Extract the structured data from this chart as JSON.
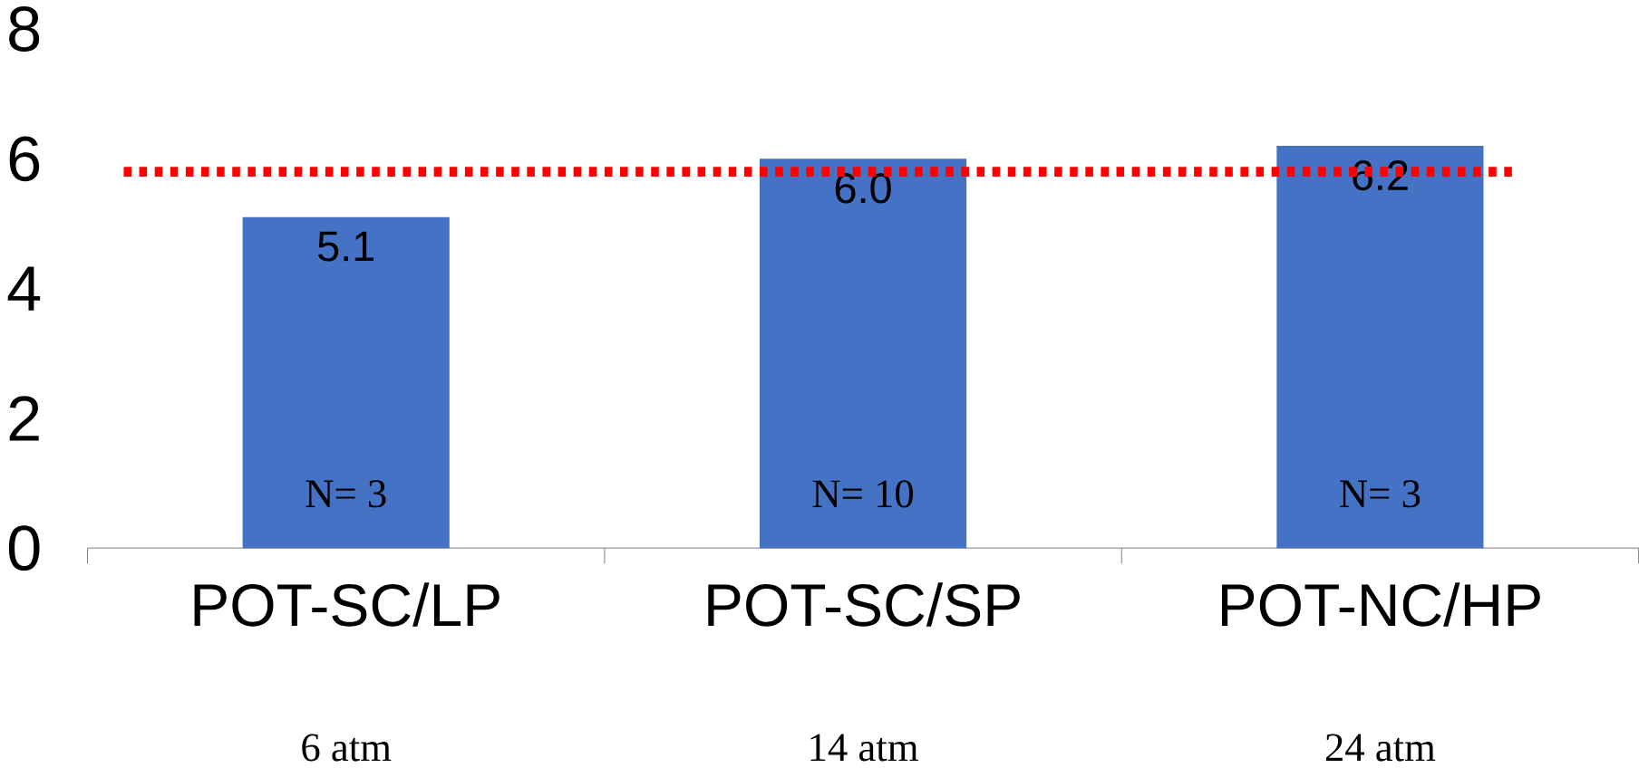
{
  "chart_data": {
    "type": "bar",
    "categories": [
      "POT-SC/LP",
      "POT-SC/SP",
      "POT-NC/HP"
    ],
    "values": [
      5.1,
      6.0,
      6.2
    ],
    "color": "#4472c4",
    "value_labels": [
      "5.1",
      "6.0",
      "6.2"
    ],
    "ylim": [
      0,
      8
    ],
    "yticks": [
      0,
      2,
      4,
      6,
      8
    ],
    "ref_lines": [
      {
        "axis": "y",
        "value": 5.8,
        "color": "#ff0000",
        "line_style": "dotted"
      }
    ],
    "annotations": [
      "N= 3",
      "N= 10",
      "N= 3",
      "6 atm",
      "14 atm",
      "24 atm"
    ]
  }
}
